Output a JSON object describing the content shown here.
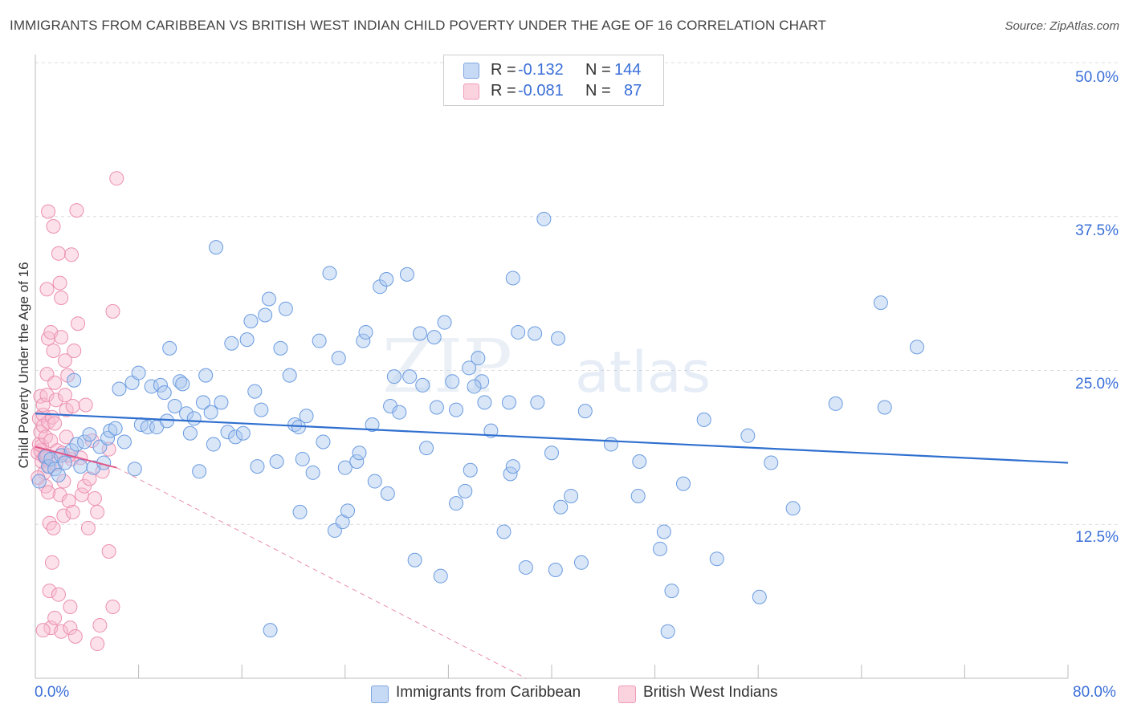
{
  "header": {
    "title": "IMMIGRANTS FROM CARIBBEAN VS BRITISH WEST INDIAN CHILD POVERTY UNDER THE AGE OF 16 CORRELATION CHART",
    "source": "Source: ZipAtlas.com"
  },
  "legend": {
    "r_label": "R =",
    "n_label": "N =",
    "rows": [
      {
        "r": "-0.132",
        "n": "144",
        "color": "#aac8f0"
      },
      {
        "r": "-0.081",
        "n": "87",
        "color": "#f8bcd0"
      }
    ]
  },
  "watermark": {
    "zip": "ZIP",
    "atlas": "atlas"
  },
  "chart_data": {
    "type": "scatter",
    "title": "IMMIGRANTS FROM CARIBBEAN VS BRITISH WEST INDIAN CHILD POVERTY UNDER THE AGE OF 16 CORRELATION CHART",
    "xlabel": "",
    "ylabel": "Child Poverty Under the Age of 16",
    "xlim": [
      0,
      80
    ],
    "ylim": [
      0,
      50
    ],
    "x_tick_labels": [
      "0.0%",
      "80.0%"
    ],
    "y_ticks": [
      12.5,
      25.0,
      37.5,
      50.0
    ],
    "y_tick_labels": [
      "12.5%",
      "25.0%",
      "37.5%",
      "50.0%"
    ],
    "grid": true,
    "series": [
      {
        "name": "Immigrants from Caribbean",
        "color": "#6a9be0",
        "fill": "#aac8f0",
        "trend": {
          "x": [
            0,
            80
          ],
          "y": [
            21.5,
            17.5
          ],
          "style": "solid"
        },
        "points": [
          [
            0.3,
            16.0
          ],
          [
            0.8,
            18.0
          ],
          [
            1.0,
            17.2
          ],
          [
            1.2,
            17.8
          ],
          [
            1.5,
            17.0
          ],
          [
            1.8,
            16.5
          ],
          [
            2.0,
            18.1
          ],
          [
            2.3,
            17.5
          ],
          [
            2.8,
            18.5
          ],
          [
            3.0,
            24.2
          ],
          [
            3.2,
            19.0
          ],
          [
            3.5,
            17.2
          ],
          [
            3.8,
            19.2
          ],
          [
            4.2,
            19.8
          ],
          [
            4.5,
            17.1
          ],
          [
            5.0,
            18.8
          ],
          [
            5.3,
            17.5
          ],
          [
            5.6,
            19.5
          ],
          [
            5.8,
            20.1
          ],
          [
            6.2,
            20.3
          ],
          [
            6.5,
            23.5
          ],
          [
            6.9,
            19.2
          ],
          [
            7.5,
            24.0
          ],
          [
            7.7,
            17.0
          ],
          [
            8.0,
            24.8
          ],
          [
            8.2,
            20.6
          ],
          [
            8.7,
            20.4
          ],
          [
            9.0,
            23.7
          ],
          [
            9.4,
            20.4
          ],
          [
            9.7,
            23.8
          ],
          [
            10.0,
            23.2
          ],
          [
            10.2,
            20.9
          ],
          [
            10.4,
            26.8
          ],
          [
            10.8,
            22.1
          ],
          [
            11.2,
            24.1
          ],
          [
            11.4,
            23.9
          ],
          [
            11.7,
            21.5
          ],
          [
            12.0,
            19.9
          ],
          [
            12.3,
            21.1
          ],
          [
            12.7,
            16.8
          ],
          [
            13.0,
            22.4
          ],
          [
            13.2,
            24.6
          ],
          [
            13.6,
            21.6
          ],
          [
            13.8,
            19.0
          ],
          [
            14.0,
            35.0
          ],
          [
            14.4,
            22.4
          ],
          [
            14.9,
            20.0
          ],
          [
            15.2,
            27.2
          ],
          [
            15.5,
            19.6
          ],
          [
            16.1,
            19.9
          ],
          [
            16.4,
            27.5
          ],
          [
            16.7,
            29.0
          ],
          [
            17.0,
            23.3
          ],
          [
            17.2,
            17.2
          ],
          [
            17.5,
            21.8
          ],
          [
            17.8,
            29.5
          ],
          [
            18.1,
            30.8
          ],
          [
            18.7,
            17.6
          ],
          [
            19.0,
            26.8
          ],
          [
            19.4,
            30.0
          ],
          [
            19.7,
            24.6
          ],
          [
            20.1,
            20.6
          ],
          [
            20.4,
            20.4
          ],
          [
            20.7,
            17.8
          ],
          [
            21.0,
            21.3
          ],
          [
            21.5,
            16.7
          ],
          [
            22.0,
            27.4
          ],
          [
            22.3,
            19.2
          ],
          [
            22.8,
            32.9
          ],
          [
            23.2,
            12.0
          ],
          [
            23.5,
            26.0
          ],
          [
            23.8,
            12.7
          ],
          [
            24.0,
            17.1
          ],
          [
            24.2,
            13.6
          ],
          [
            24.9,
            17.6
          ],
          [
            25.1,
            18.3
          ],
          [
            25.4,
            27.4
          ],
          [
            25.6,
            28.1
          ],
          [
            26.1,
            20.6
          ],
          [
            26.3,
            16.0
          ],
          [
            26.7,
            31.8
          ],
          [
            27.2,
            32.4
          ],
          [
            27.3,
            15.0
          ],
          [
            27.5,
            22.1
          ],
          [
            27.8,
            24.5
          ],
          [
            28.2,
            21.6
          ],
          [
            28.8,
            32.8
          ],
          [
            29.0,
            24.5
          ],
          [
            29.4,
            9.6
          ],
          [
            29.8,
            28.0
          ],
          [
            30.0,
            23.8
          ],
          [
            30.3,
            18.7
          ],
          [
            30.9,
            27.7
          ],
          [
            31.1,
            22.0
          ],
          [
            31.4,
            8.3
          ],
          [
            31.7,
            28.9
          ],
          [
            32.3,
            24.1
          ],
          [
            32.6,
            14.2
          ],
          [
            32.6,
            21.8
          ],
          [
            33.3,
            15.2
          ],
          [
            33.6,
            25.2
          ],
          [
            33.7,
            16.9
          ],
          [
            34.3,
            26.0
          ],
          [
            34.6,
            24.1
          ],
          [
            34.8,
            22.4
          ],
          [
            35.3,
            20.1
          ],
          [
            36.3,
            11.9
          ],
          [
            36.7,
            22.4
          ],
          [
            36.8,
            16.6
          ],
          [
            37.0,
            17.2
          ],
          [
            37.4,
            28.1
          ],
          [
            38.0,
            9.0
          ],
          [
            38.7,
            28.0
          ],
          [
            38.9,
            22.4
          ],
          [
            39.4,
            37.3
          ],
          [
            40.0,
            18.3
          ],
          [
            40.3,
            8.8
          ],
          [
            40.5,
            27.6
          ],
          [
            40.7,
            13.9
          ],
          [
            41.5,
            14.8
          ],
          [
            42.3,
            9.4
          ],
          [
            42.6,
            21.7
          ],
          [
            44.6,
            19.0
          ],
          [
            46.7,
            14.8
          ],
          [
            46.8,
            17.6
          ],
          [
            48.4,
            10.5
          ],
          [
            48.7,
            11.9
          ],
          [
            49.3,
            7.1
          ],
          [
            50.2,
            15.8
          ],
          [
            51.8,
            21.0
          ],
          [
            52.8,
            9.7
          ],
          [
            55.2,
            19.7
          ],
          [
            56.1,
            6.6
          ],
          [
            57.0,
            17.5
          ],
          [
            58.7,
            13.8
          ],
          [
            62.0,
            22.3
          ],
          [
            65.5,
            30.5
          ],
          [
            65.8,
            22.0
          ],
          [
            68.3,
            26.9
          ],
          [
            49.0,
            3.8
          ],
          [
            18.2,
            3.9
          ],
          [
            34.0,
            23.7
          ],
          [
            37.0,
            32.5
          ],
          [
            20.5,
            13.5
          ]
        ]
      },
      {
        "name": "British West Indians",
        "color": "#ec8fb0",
        "fill": "#f8bcd0",
        "trend": {
          "x": [
            0,
            6.3
          ],
          "y": [
            18.8,
            17.1
          ],
          "style": "solid",
          "extended": {
            "x": [
              6.3,
              38
            ],
            "y": [
              17.1,
              0
            ]
          }
        },
        "points": [
          [
            0.2,
            18.3
          ],
          [
            0.3,
            21.1
          ],
          [
            0.3,
            19.0
          ],
          [
            0.4,
            22.9
          ],
          [
            0.4,
            20.0
          ],
          [
            0.4,
            18.5
          ],
          [
            0.5,
            17.6
          ],
          [
            0.5,
            18.9
          ],
          [
            0.6,
            21.4
          ],
          [
            0.6,
            20.5
          ],
          [
            0.6,
            22.2
          ],
          [
            0.7,
            18.0
          ],
          [
            0.7,
            16.7
          ],
          [
            0.8,
            19.6
          ],
          [
            0.8,
            17.9
          ],
          [
            0.8,
            15.6
          ],
          [
            0.9,
            23.0
          ],
          [
            0.9,
            18.1
          ],
          [
            0.9,
            24.7
          ],
          [
            0.9,
            31.6
          ],
          [
            1.0,
            37.9
          ],
          [
            1.0,
            20.8
          ],
          [
            1.0,
            27.6
          ],
          [
            1.1,
            17.2
          ],
          [
            1.1,
            7.1
          ],
          [
            1.1,
            12.6
          ],
          [
            1.2,
            19.3
          ],
          [
            1.2,
            4.1
          ],
          [
            1.2,
            28.1
          ],
          [
            1.3,
            21.2
          ],
          [
            1.3,
            9.4
          ],
          [
            1.4,
            12.2
          ],
          [
            1.4,
            26.6
          ],
          [
            1.4,
            36.7
          ],
          [
            1.5,
            4.9
          ],
          [
            1.5,
            24.0
          ],
          [
            1.6,
            17.4
          ],
          [
            1.6,
            22.6
          ],
          [
            1.7,
            18.5
          ],
          [
            1.8,
            34.5
          ],
          [
            1.8,
            6.8
          ],
          [
            1.9,
            14.9
          ],
          [
            1.9,
            32.1
          ],
          [
            2.0,
            30.9
          ],
          [
            2.0,
            3.8
          ],
          [
            2.0,
            27.7
          ],
          [
            2.1,
            18.3
          ],
          [
            2.2,
            13.2
          ],
          [
            2.2,
            16.0
          ],
          [
            2.3,
            23.0
          ],
          [
            2.3,
            25.8
          ],
          [
            2.4,
            21.8
          ],
          [
            2.4,
            19.6
          ],
          [
            2.5,
            24.6
          ],
          [
            2.6,
            14.4
          ],
          [
            2.7,
            4.1
          ],
          [
            2.7,
            5.8
          ],
          [
            2.8,
            34.4
          ],
          [
            2.8,
            17.8
          ],
          [
            2.9,
            22.1
          ],
          [
            2.9,
            13.5
          ],
          [
            3.0,
            26.6
          ],
          [
            3.1,
            3.4
          ],
          [
            3.2,
            38.0
          ],
          [
            3.3,
            28.8
          ],
          [
            3.5,
            17.9
          ],
          [
            3.6,
            14.9
          ],
          [
            3.8,
            15.6
          ],
          [
            4.1,
            12.2
          ],
          [
            4.2,
            16.2
          ],
          [
            4.4,
            19.3
          ],
          [
            4.6,
            14.6
          ],
          [
            4.8,
            13.5
          ],
          [
            4.8,
            2.8
          ],
          [
            5.0,
            4.3
          ],
          [
            5.7,
            10.3
          ],
          [
            5.7,
            18.6
          ],
          [
            6.0,
            5.8
          ],
          [
            6.0,
            29.8
          ],
          [
            6.3,
            40.6
          ],
          [
            0.2,
            16.3
          ],
          [
            1.0,
            15.1
          ],
          [
            1.5,
            20.7
          ],
          [
            2.6,
            18.1
          ],
          [
            0.6,
            3.9
          ],
          [
            3.9,
            22.2
          ],
          [
            5.2,
            16.8
          ]
        ]
      }
    ]
  }
}
